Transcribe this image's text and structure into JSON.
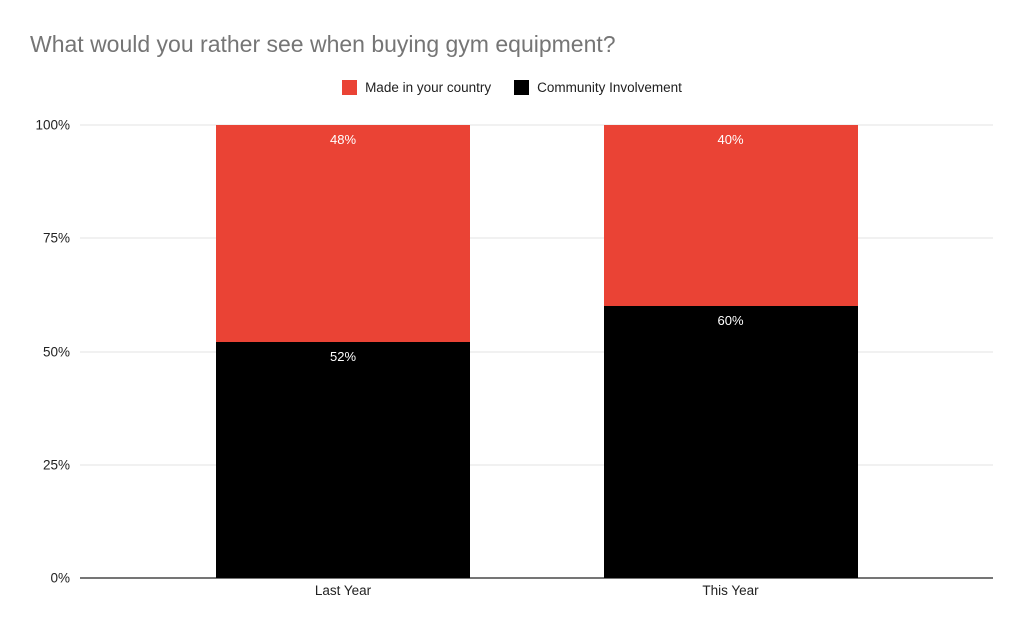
{
  "title": "What would you rather see when buying gym equipment?",
  "colors": {
    "title_gray": "#757575",
    "grid_gray": "#e3e3e3",
    "axis_gray": "#757575",
    "text_dark": "#212121",
    "label_white": "#ffffff",
    "series_red": "#ea4335",
    "series_black": "#000000"
  },
  "chart_data": {
    "type": "bar",
    "stacked": true,
    "stacking": "percent",
    "title": "What would you rather see when buying gym equipment?",
    "categories": [
      "Last Year",
      "This Year"
    ],
    "series": [
      {
        "name": "Made in your country",
        "color": "#ea4335",
        "values": [
          48,
          40
        ],
        "labels": [
          "48%",
          "40%"
        ]
      },
      {
        "name": "Community Involvement",
        "color": "#000000",
        "values": [
          52,
          60
        ],
        "labels": [
          "52%",
          "60%"
        ]
      }
    ],
    "stack_order_note": "Made in your country on top, Community Involvement at bottom",
    "xlabel": "",
    "ylabel": "",
    "yticks": [
      "0%",
      "25%",
      "50%",
      "75%",
      "100%"
    ],
    "ylim": [
      0,
      100
    ],
    "grid": true,
    "legend_position": "top"
  }
}
